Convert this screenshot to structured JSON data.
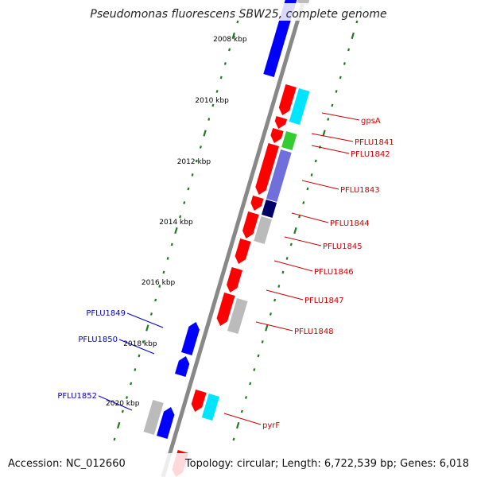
{
  "title": "Pseudomonas fluorescens SBW25, complete genome",
  "footer": {
    "accession": "Accession: NC_012660",
    "topology": "Topology: circular; Length: 6,722,539 bp; Genes: 6,018"
  },
  "colors": {
    "backbone": "#888888",
    "tick": "#1f7a1f",
    "forward_gene": "#ff0000",
    "reverse_gene": "#0000ff",
    "hypothetical": "#bbbbbb",
    "cyan_feature": "#00e5ff",
    "green_feature": "#33cc33",
    "purple_feature": "#7070dd",
    "navy_feature": "#000066",
    "label_forward": "#cc0000",
    "label_reverse": "#0000cc"
  },
  "position_labels": [
    "2008 kbp",
    "2010 kbp",
    "2012 kbp",
    "2014 kbp",
    "2016 kbp",
    "2018 kbp",
    "2020 kbp"
  ],
  "gene_labels_forward": [
    "gpsA",
    "PFLU1841",
    "PFLU1842",
    "PFLU1843",
    "PFLU1844",
    "PFLU1845",
    "PFLU1846",
    "PFLU1847",
    "PFLU1848",
    "pyrF"
  ],
  "gene_labels_reverse": [
    "PFLU1849",
    "PFLU1850",
    "PFLU1852"
  ]
}
